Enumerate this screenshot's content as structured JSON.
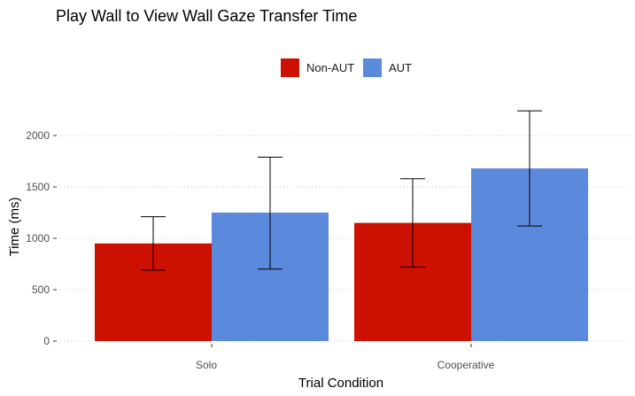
{
  "chart_data": {
    "type": "bar",
    "title": "Play Wall to View Wall Gaze Transfer Time",
    "xlabel": "Trial Condition",
    "ylabel": "Time (ms)",
    "categories": [
      "Solo",
      "Cooperative"
    ],
    "ylim": [
      0,
      2300
    ],
    "yticks": [
      0,
      500,
      1000,
      1500,
      2000
    ],
    "grid": "horizontal dotted",
    "legend_position": "top",
    "series": [
      {
        "name": "Non-AUT",
        "color": "#cc1100",
        "values": [
          950,
          1150
        ],
        "error_low": [
          690,
          720
        ],
        "error_high": [
          1210,
          1580
        ]
      },
      {
        "name": "AUT",
        "color": "#5b89db",
        "values": [
          1250,
          1680
        ],
        "error_low": [
          700,
          1120
        ],
        "error_high": [
          1790,
          2240
        ]
      }
    ]
  }
}
